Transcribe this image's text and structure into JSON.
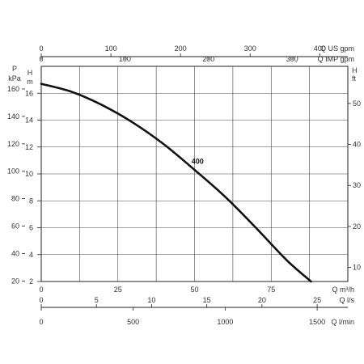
{
  "chart_data": {
    "type": "line",
    "title": "",
    "grid": true,
    "primary_x": {
      "label": "Q m³/h",
      "ticks": [
        0,
        25,
        50,
        75
      ],
      "xlim": [
        0,
        100
      ]
    },
    "primary_y": {
      "label_top": "H",
      "label_unit": "m",
      "ticks": [
        2,
        4,
        6,
        8,
        10,
        12,
        14,
        16
      ],
      "ylim": [
        2,
        18
      ]
    },
    "left_kpa_axis": {
      "label_top": "P",
      "label_unit": "kPa",
      "ticks": [
        20,
        40,
        60,
        80,
        100,
        120,
        140,
        160
      ]
    },
    "right_ft_axis": {
      "label_top": "H",
      "label_unit": "ft",
      "ticks": [
        10,
        20,
        30,
        40,
        50
      ]
    },
    "top_us_gpm_axis": {
      "label": "Q US gpm",
      "ticks": [
        0,
        100,
        200,
        300,
        400
      ]
    },
    "top_imp_gpm_axis": {
      "label": "Q IMP gpm",
      "ticks": [
        0,
        100,
        200,
        300
      ]
    },
    "bottom_ls_axis": {
      "label": "Q l/s",
      "ticks": [
        0,
        5,
        10,
        15,
        20,
        25
      ]
    },
    "bottom_lmin_axis": {
      "label": "Q l/min",
      "ticks": [
        0,
        500,
        1000,
        1500
      ]
    },
    "series": [
      {
        "name": "400",
        "color": "#111111",
        "x": [
          0,
          10,
          20,
          30,
          40,
          50,
          60,
          70,
          80,
          88
        ],
        "y": [
          16.7,
          16.1,
          15.1,
          13.8,
          12.2,
          10.3,
          8.3,
          6.0,
          3.6,
          2.0
        ]
      }
    ]
  }
}
